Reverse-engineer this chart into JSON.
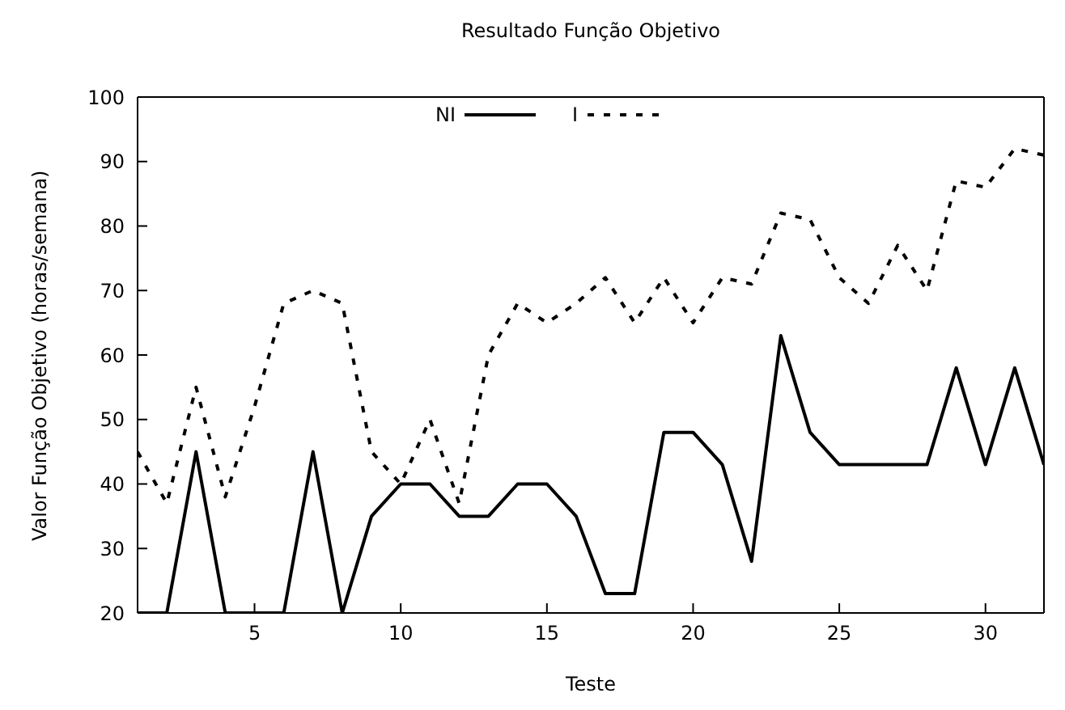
{
  "chart_data": {
    "type": "line",
    "title": "Resultado Função Objetivo",
    "xlabel": "Teste",
    "ylabel": "Valor Função Objetivo (horas/semana)",
    "x": [
      1,
      2,
      3,
      4,
      5,
      6,
      7,
      8,
      9,
      10,
      11,
      12,
      13,
      14,
      15,
      16,
      17,
      18,
      19,
      20,
      21,
      22,
      23,
      24,
      25,
      26,
      27,
      28,
      29,
      30,
      31,
      32
    ],
    "series": [
      {
        "name": "NI",
        "color": "#000000",
        "line_style": "solid",
        "values": [
          20,
          20,
          45,
          20,
          20,
          20,
          45,
          20,
          35,
          40,
          40,
          35,
          35,
          40,
          40,
          35,
          23,
          23,
          48,
          48,
          43,
          28,
          63,
          48,
          43,
          43,
          43,
          43,
          58,
          43,
          58,
          43
        ]
      },
      {
        "name": "I",
        "color": "#000000",
        "line_style": "dashed",
        "values": [
          45,
          37,
          55,
          38,
          52,
          68,
          70,
          68,
          45,
          40,
          50,
          37,
          60,
          68,
          65,
          68,
          72,
          65,
          72,
          65,
          72,
          71,
          82,
          81,
          72,
          68,
          77,
          70,
          87,
          86,
          92,
          91
        ]
      }
    ],
    "xlim": [
      1,
      32
    ],
    "xticks": [
      5,
      10,
      15,
      20,
      25,
      30
    ],
    "ylim": [
      20,
      100
    ],
    "yticks": [
      20,
      30,
      40,
      50,
      60,
      70,
      80,
      90,
      100
    ],
    "legend": "top",
    "marker": "none"
  }
}
